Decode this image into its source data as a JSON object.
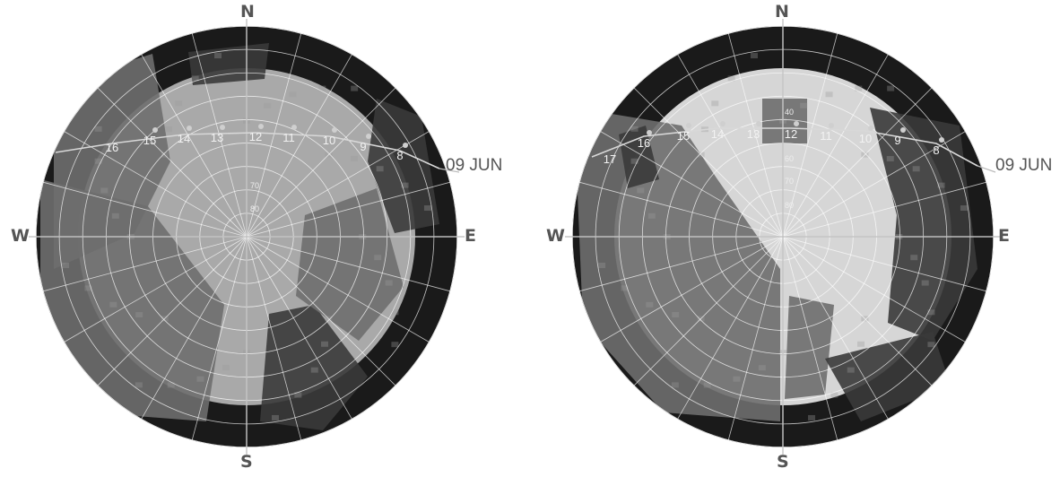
{
  "diagrams": [
    {
      "id": "left",
      "cardinals": {
        "n": "N",
        "s": "S",
        "w": "W",
        "e": "E"
      },
      "date_label": "09 JUN",
      "hour_labels": [
        "16",
        "15",
        "14",
        "13",
        "12",
        "11",
        "10",
        "9",
        "8"
      ],
      "altitude_labels": [
        "70",
        "80"
      ]
    },
    {
      "id": "right",
      "cardinals": {
        "n": "N",
        "s": "S",
        "w": "W",
        "e": "E"
      },
      "date_label": "09 JUN",
      "hour_labels": [
        "17",
        "16",
        "15",
        "14",
        "13",
        "12",
        "11",
        "10",
        "9",
        "8"
      ],
      "altitude_labels": [
        "40",
        "60",
        "70",
        "80"
      ]
    }
  ],
  "colors": {
    "frame_dark": "#1a1a1a",
    "sky_left": "#a9a9a9",
    "sky_right": "#d6d6d6",
    "building_mid": "#6e6e6e",
    "grid": "#ffffff",
    "label": "#555555"
  }
}
